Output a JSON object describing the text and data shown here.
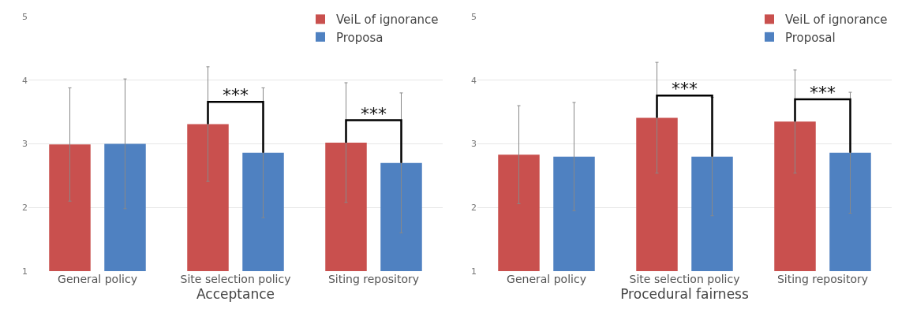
{
  "chart_data": [
    {
      "type": "bar",
      "xlabel": "Acceptance",
      "categories": [
        "General policy",
        "Site selection policy",
        "Siting repository"
      ],
      "series": [
        {
          "name": "VeiL of ignorance",
          "color": "#c9504e",
          "values": [
            2.99,
            3.31,
            3.02
          ],
          "errors": [
            0.89,
            0.9,
            0.94
          ]
        },
        {
          "name": "Proposa",
          "color": "#4f81c1",
          "values": [
            3.0,
            2.86,
            2.7
          ],
          "errors": [
            1.02,
            1.02,
            1.1
          ]
        }
      ],
      "ylim": [
        1,
        5
      ],
      "yticks": [
        1,
        2,
        3,
        4,
        5
      ],
      "grid": "y",
      "legend": "top right",
      "annotations": [
        "***",
        "***"
      ]
    },
    {
      "type": "bar",
      "xlabel": "Procedural fairness",
      "categories": [
        "General policy",
        "Site selection policy",
        "Siting repository"
      ],
      "series": [
        {
          "name": "VeiL of ignorance",
          "color": "#c9504e",
          "values": [
            2.83,
            3.41,
            3.35
          ],
          "errors": [
            0.77,
            0.87,
            0.81
          ]
        },
        {
          "name": "Proposal",
          "color": "#4f81c1",
          "values": [
            2.8,
            2.8,
            2.86
          ],
          "errors": [
            0.85,
            0.93,
            0.95
          ]
        }
      ],
      "ylim": [
        1,
        5
      ],
      "yticks": [
        1,
        2,
        3,
        4,
        5
      ],
      "grid": "y",
      "legend": "top right",
      "annotations": [
        "***",
        "***"
      ]
    }
  ]
}
